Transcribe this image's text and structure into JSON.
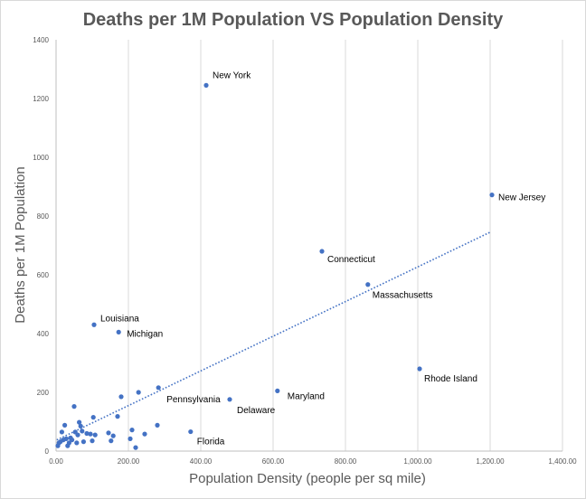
{
  "chart_data": {
    "type": "scatter",
    "title": "Deaths per 1M Population VS Population Density",
    "xlabel": "Population Density (people per sq mile)",
    "ylabel": "Deaths per 1M Population",
    "xlim": [
      0,
      1400
    ],
    "ylim": [
      0,
      1400
    ],
    "x_ticks": [
      "0.00",
      "200.00",
      "400.00",
      "600.00",
      "800.00",
      "1,000.00",
      "1,200.00",
      "1,400.00"
    ],
    "y_ticks": [
      "0",
      "200",
      "400",
      "600",
      "800",
      "1000",
      "1200",
      "1400"
    ],
    "x_tick_values": [
      0,
      200,
      400,
      600,
      800,
      1000,
      1200,
      1400
    ],
    "y_tick_values": [
      0,
      200,
      400,
      600,
      800,
      1000,
      1200,
      1400
    ],
    "grid": {
      "x": true,
      "y": false
    },
    "legend": "none",
    "marker_color": "#4472c4",
    "trendline": {
      "type": "linear",
      "style": "dotted",
      "color": "#4472c4",
      "x": [
        2,
        1200
      ],
      "y": [
        38,
        745
      ]
    },
    "labeled_points": [
      {
        "label": "New York",
        "x": 415,
        "y": 1245
      },
      {
        "label": "New Jersey",
        "x": 1205,
        "y": 872
      },
      {
        "label": "Connecticut",
        "x": 735,
        "y": 680
      },
      {
        "label": "Massachusetts",
        "x": 862,
        "y": 567
      },
      {
        "label": "Louisiana",
        "x": 105,
        "y": 430
      },
      {
        "label": "Michigan",
        "x": 173,
        "y": 405
      },
      {
        "label": "Rhode Island",
        "x": 1005,
        "y": 280
      },
      {
        "label": "Maryland",
        "x": 612,
        "y": 205
      },
      {
        "label": "Pennsylvania",
        "x": 283,
        "y": 216
      },
      {
        "label": "Delaware",
        "x": 480,
        "y": 176
      },
      {
        "label": "Florida",
        "x": 372,
        "y": 66
      }
    ],
    "points": [
      {
        "x": 5,
        "y": 18
      },
      {
        "x": 8,
        "y": 28
      },
      {
        "x": 12,
        "y": 32
      },
      {
        "x": 16,
        "y": 65
      },
      {
        "x": 20,
        "y": 38
      },
      {
        "x": 24,
        "y": 88
      },
      {
        "x": 28,
        "y": 42
      },
      {
        "x": 32,
        "y": 18
      },
      {
        "x": 36,
        "y": 28
      },
      {
        "x": 40,
        "y": 45
      },
      {
        "x": 44,
        "y": 38
      },
      {
        "x": 50,
        "y": 152
      },
      {
        "x": 53,
        "y": 65
      },
      {
        "x": 57,
        "y": 28
      },
      {
        "x": 60,
        "y": 55
      },
      {
        "x": 64,
        "y": 98
      },
      {
        "x": 68,
        "y": 85
      },
      {
        "x": 72,
        "y": 68
      },
      {
        "x": 76,
        "y": 32
      },
      {
        "x": 85,
        "y": 60
      },
      {
        "x": 95,
        "y": 58
      },
      {
        "x": 100,
        "y": 35
      },
      {
        "x": 103,
        "y": 115
      },
      {
        "x": 108,
        "y": 55
      },
      {
        "x": 145,
        "y": 62
      },
      {
        "x": 152,
        "y": 35
      },
      {
        "x": 158,
        "y": 52
      },
      {
        "x": 170,
        "y": 118
      },
      {
        "x": 180,
        "y": 185
      },
      {
        "x": 205,
        "y": 42
      },
      {
        "x": 210,
        "y": 72
      },
      {
        "x": 220,
        "y": 12
      },
      {
        "x": 228,
        "y": 200
      },
      {
        "x": 245,
        "y": 58
      },
      {
        "x": 280,
        "y": 88
      }
    ]
  }
}
